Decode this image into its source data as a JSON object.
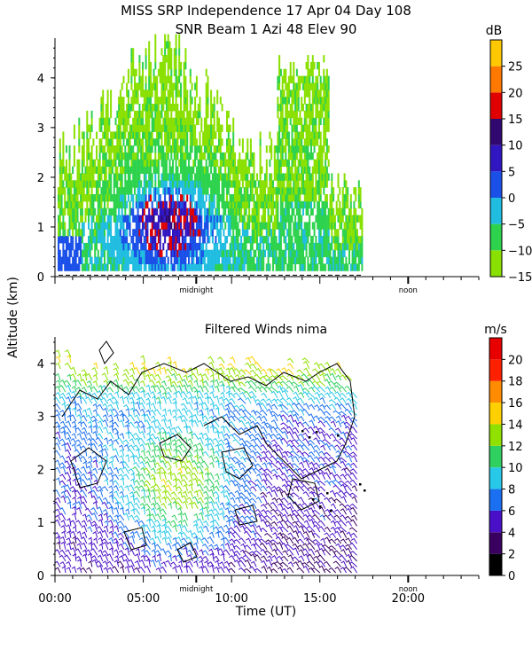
{
  "title": {
    "line1": "MISS SRP Independence  17 Apr 04 Day 108",
    "line2": "SNR Beam 1 Azi   48 Elev 90"
  },
  "shared_ylabel": "Altitude (km)",
  "markers": {
    "midnight": "midnight",
    "noon": "noon"
  },
  "chart_data": [
    {
      "type": "heatmap",
      "name": "snr",
      "title": "SNR Beam 1 Azi   48 Elev 90",
      "xlabel": "",
      "ylabel": "Altitude (km)",
      "xlim": [
        0,
        24
      ],
      "ylim": [
        0,
        4.8
      ],
      "y_ticks": [
        0,
        1,
        2,
        3,
        4
      ],
      "y_tick_labels": [
        "0",
        "1",
        "2",
        "3",
        "4"
      ],
      "colorbar": {
        "unit": "dB",
        "range": [
          -15,
          30
        ],
        "tick_values": [
          -15,
          -10,
          -5,
          0,
          5,
          10,
          15,
          20,
          25
        ],
        "tick_labels": [
          "−15",
          "−10",
          "−5",
          "0",
          "5",
          "10",
          "15",
          "20",
          "25"
        ],
        "band_colors": [
          "#8ae000",
          "#2dd24d",
          "#20bde0",
          "#1a50e8",
          "#3016c0",
          "#300870",
          "#e00000",
          "#ff7800",
          "#ffc800"
        ]
      },
      "data_coverage_hours": [
        0,
        17.4
      ]
    },
    {
      "type": "scatter",
      "name": "winds",
      "title": "Filtered Winds nima",
      "xlabel": "Time (UT)",
      "ylabel": "Altitude (km)",
      "xlim": [
        0,
        24
      ],
      "ylim": [
        0,
        4.5
      ],
      "x_ticks": [
        0,
        5,
        10,
        15,
        20
      ],
      "x_tick_labels": [
        "00:00",
        "05:00",
        "10:00",
        "15:00",
        "20:00"
      ],
      "y_ticks": [
        0,
        1,
        2,
        3,
        4
      ],
      "y_tick_labels": [
        "0",
        "1",
        "2",
        "3",
        "4"
      ],
      "colorbar": {
        "unit": "m/s",
        "range": [
          0,
          22
        ],
        "tick_values": [
          0,
          2,
          4,
          6,
          8,
          10,
          12,
          14,
          16,
          18,
          20
        ],
        "tick_labels": [
          "0",
          "2",
          "4",
          "6",
          "8",
          "10",
          "12",
          "14",
          "16",
          "18",
          "20"
        ],
        "band_colors": [
          "#000000",
          "#3a0060",
          "#4a10c8",
          "#1a70f0",
          "#28c8e8",
          "#30d060",
          "#90e000",
          "#ffd000",
          "#ff8c00",
          "#ff2000",
          "#e80000"
        ]
      },
      "data_coverage_hours": [
        0,
        17.4
      ]
    }
  ]
}
